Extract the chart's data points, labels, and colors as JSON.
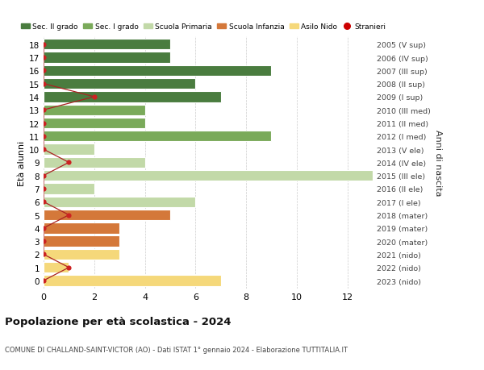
{
  "ages": [
    18,
    17,
    16,
    15,
    14,
    13,
    12,
    11,
    10,
    9,
    8,
    7,
    6,
    5,
    4,
    3,
    2,
    1,
    0
  ],
  "right_labels": [
    "2005 (V sup)",
    "2006 (IV sup)",
    "2007 (III sup)",
    "2008 (II sup)",
    "2009 (I sup)",
    "2010 (III med)",
    "2011 (II med)",
    "2012 (I med)",
    "2013 (V ele)",
    "2014 (IV ele)",
    "2015 (III ele)",
    "2016 (II ele)",
    "2017 (I ele)",
    "2018 (mater)",
    "2019 (mater)",
    "2020 (mater)",
    "2021 (nido)",
    "2022 (nido)",
    "2023 (nido)"
  ],
  "bar_values": [
    5,
    5,
    9,
    6,
    7,
    4,
    4,
    9,
    2,
    4,
    13,
    2,
    6,
    5,
    3,
    3,
    3,
    1,
    7
  ],
  "bar_colors": [
    "#4a7c3f",
    "#4a7c3f",
    "#4a7c3f",
    "#4a7c3f",
    "#4a7c3f",
    "#7aaa5a",
    "#7aaa5a",
    "#7aaa5a",
    "#c2d9a8",
    "#c2d9a8",
    "#c2d9a8",
    "#c2d9a8",
    "#c2d9a8",
    "#d4783a",
    "#d4783a",
    "#d4783a",
    "#f5d87a",
    "#f5d87a",
    "#f5d87a"
  ],
  "stranieri_x_all": [
    0,
    0,
    0,
    0,
    2,
    0,
    0,
    0,
    0,
    1,
    0,
    0,
    0,
    1,
    0,
    0,
    0,
    1,
    0
  ],
  "title": "Popolazione per età scolastica - 2024",
  "subtitle": "COMUNE DI CHALLAND-SAINT-VICTOR (AO) - Dati ISTAT 1° gennaio 2024 - Elaborazione TUTTITALIA.IT",
  "ylabel_left": "Età alunni",
  "ylabel_right": "Anni di nascita",
  "xlim": [
    0,
    13
  ],
  "xticks": [
    0,
    2,
    4,
    6,
    8,
    10,
    12
  ],
  "legend_items": [
    {
      "label": "Sec. II grado",
      "color": "#4a7c3f"
    },
    {
      "label": "Sec. I grado",
      "color": "#7aaa5a"
    },
    {
      "label": "Scuola Primaria",
      "color": "#c2d9a8"
    },
    {
      "label": "Scuola Infanzia",
      "color": "#d4783a"
    },
    {
      "label": "Asilo Nido",
      "color": "#f5d87a"
    },
    {
      "label": "Stranieri",
      "color": "#cc0000"
    }
  ],
  "bg_color": "#ffffff",
  "grid_color": "#cccccc",
  "bar_edge_color": "#ffffff",
  "stranieri_line_color": "#aa2222",
  "stranieri_marker_color": "#cc2222",
  "bar_height": 0.82
}
